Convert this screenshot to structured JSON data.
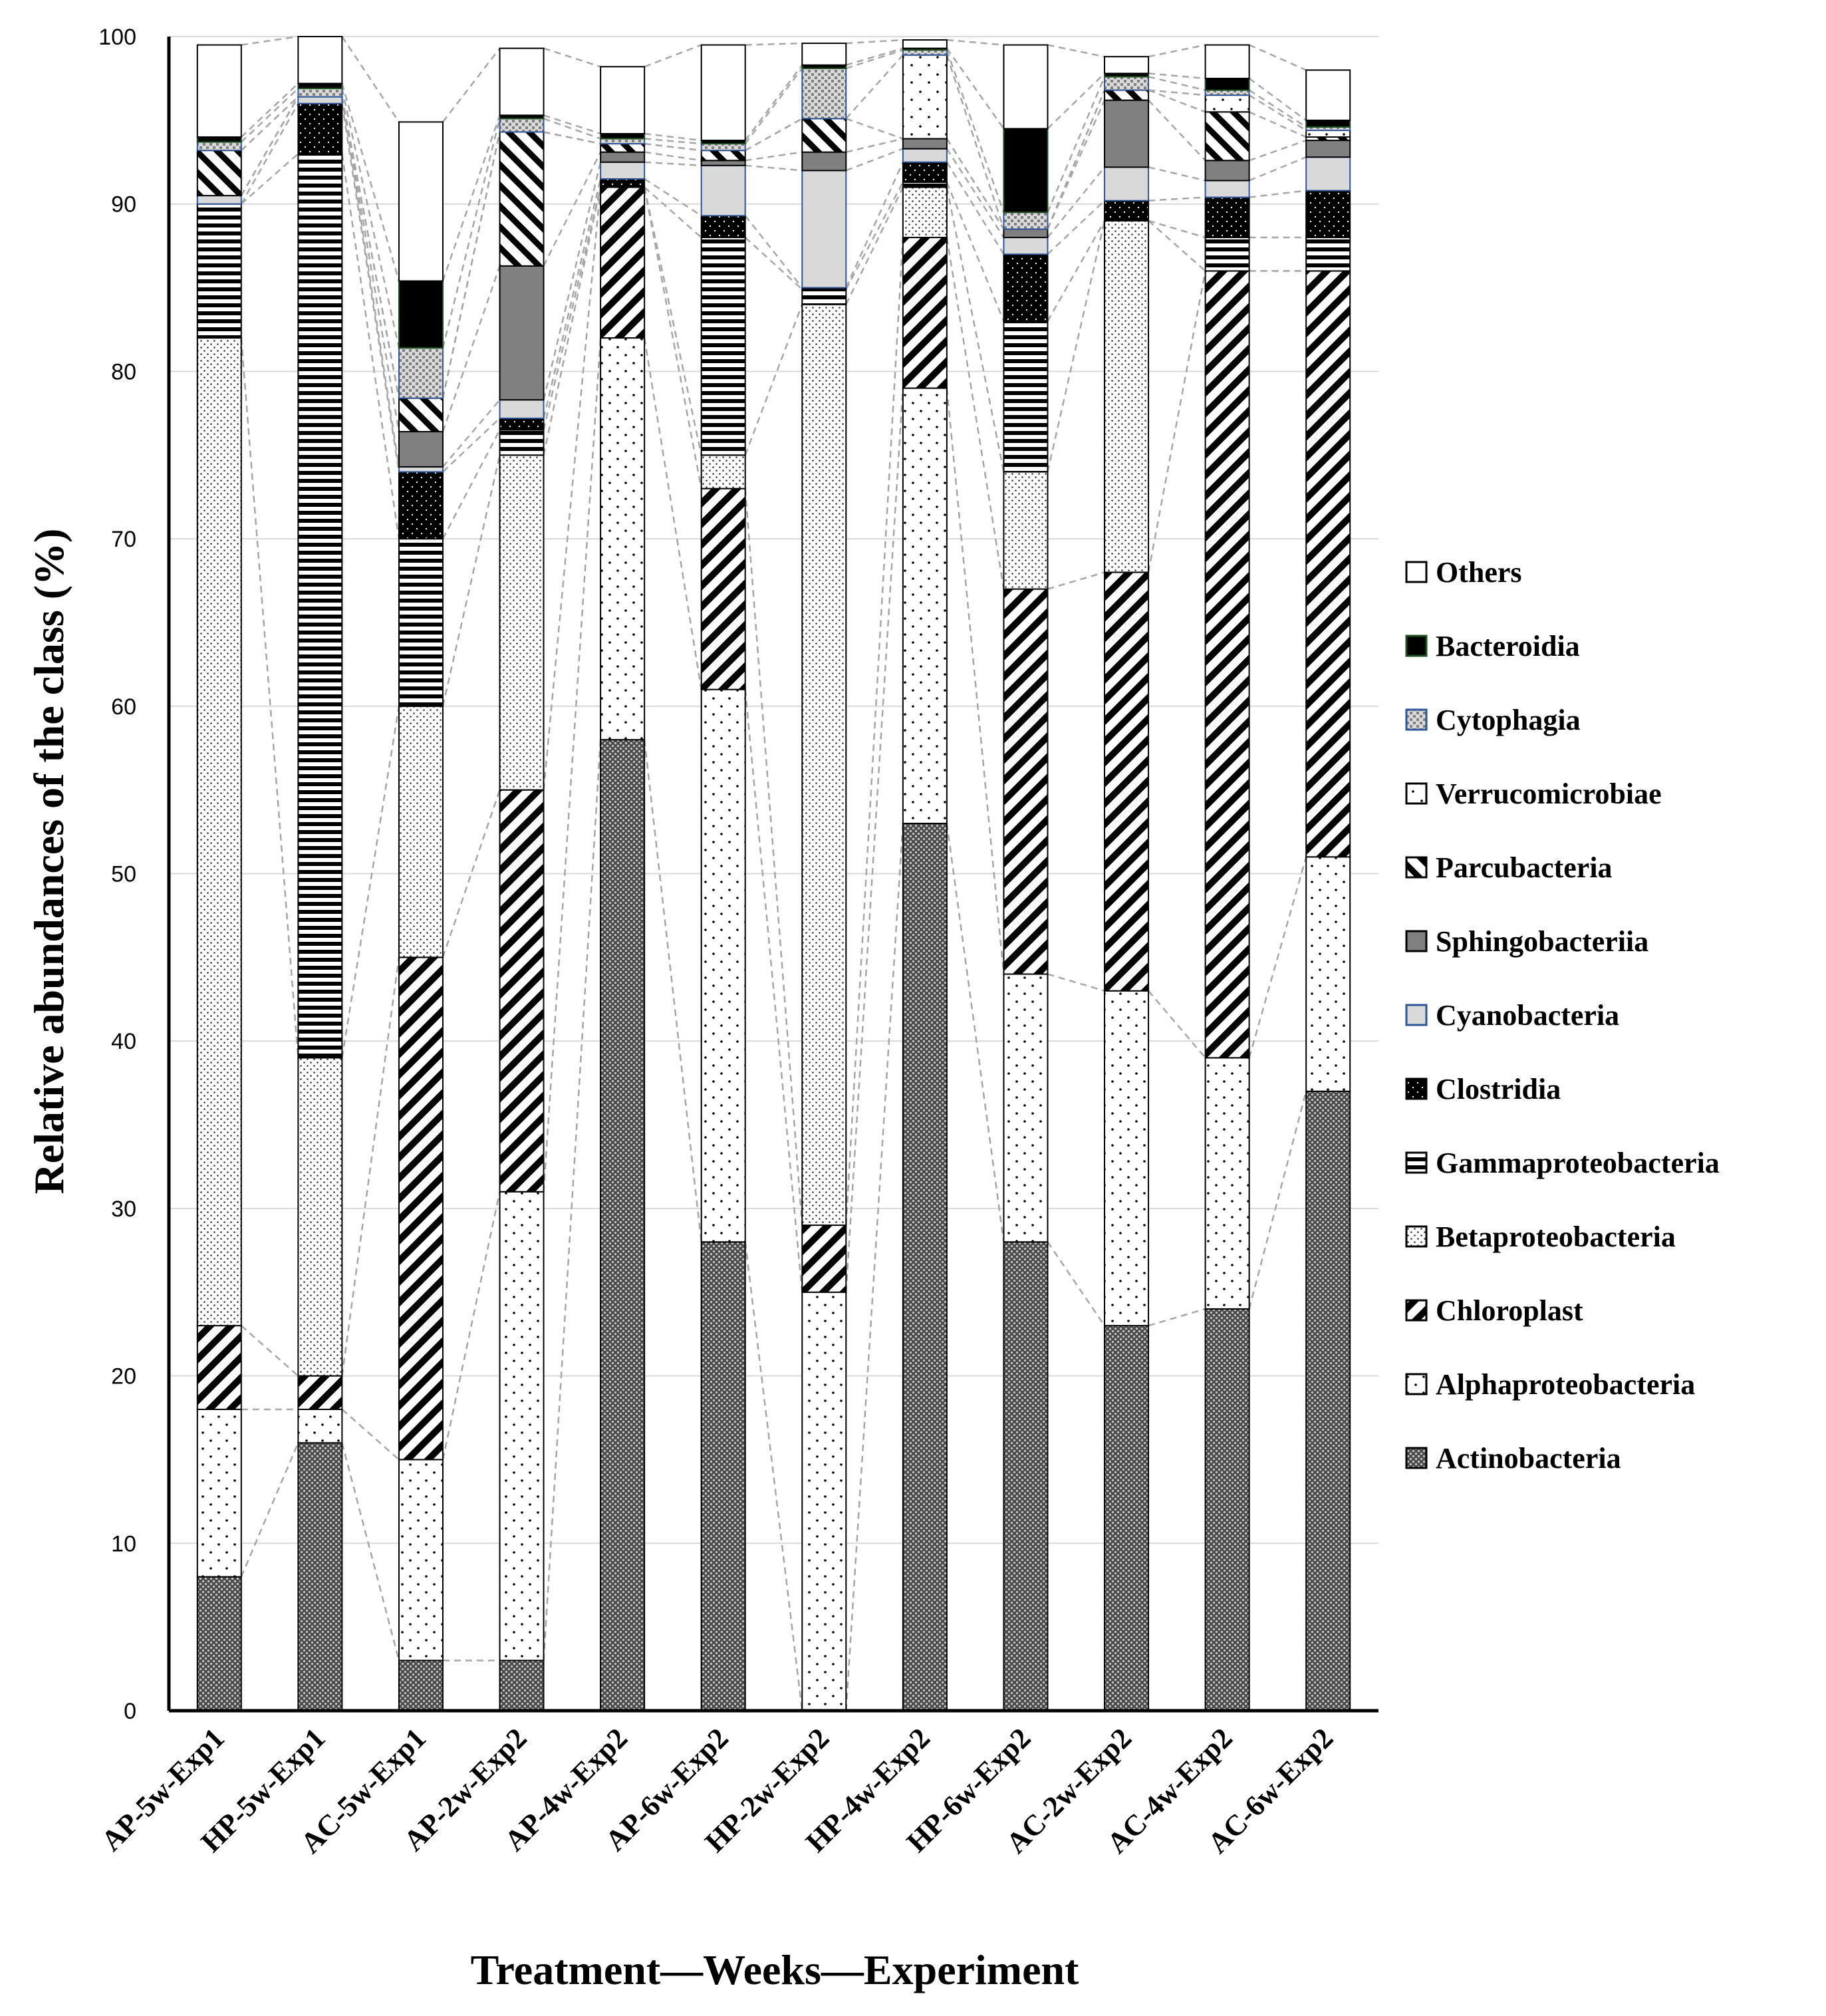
{
  "chart_data": {
    "type": "bar",
    "stacked": true,
    "title": "",
    "xlabel": "Treatment—Weeks—Experiment",
    "ylabel": "Relative abundances of the class (%)",
    "ylim": [
      0,
      100
    ],
    "yticks": [
      0,
      10,
      20,
      30,
      40,
      50,
      60,
      70,
      80,
      90,
      100
    ],
    "grid": true,
    "legend_position": "right",
    "categories": [
      "AP-5w-Exp1",
      "HP-5w-Exp1",
      "AC-5w-Exp1",
      "AP-2w-Exp2",
      "AP-4w-Exp2",
      "AP-6w-Exp2",
      "HP-2w-Exp2",
      "HP-4w-Exp2",
      "HP-6w-Exp2",
      "AC-2w-Exp2",
      "AC-4w-Exp2",
      "AC-6w-Exp2"
    ],
    "series": [
      {
        "name": "Actinobacteria",
        "values": [
          8,
          16,
          3,
          3,
          58,
          28,
          0,
          53,
          28,
          23,
          24,
          37
        ]
      },
      {
        "name": "Alphaproteobacteria",
        "values": [
          10,
          2,
          12,
          28,
          24,
          33,
          25,
          26,
          16,
          20,
          15,
          14
        ]
      },
      {
        "name": "Chloroplast",
        "values": [
          5,
          2,
          30,
          24,
          9,
          12,
          4,
          9,
          23,
          25,
          47,
          35
        ]
      },
      {
        "name": "Betaproteobacteria",
        "values": [
          59,
          19,
          15,
          20,
          0,
          2,
          55,
          3,
          7,
          21,
          0,
          0
        ]
      },
      {
        "name": "Gammaproteobacteria",
        "values": [
          8,
          54,
          10,
          1.5,
          0,
          13,
          0.9,
          0.3,
          9,
          0,
          2,
          2
        ]
      },
      {
        "name": "Clostridia",
        "values": [
          0,
          3,
          4,
          0.7,
          0.5,
          1.3,
          0.1,
          1.2,
          4,
          1.2,
          2.4,
          2.8
        ]
      },
      {
        "name": "Cyanobacteria",
        "values": [
          0.5,
          0.4,
          0.3,
          1.1,
          1,
          3,
          7,
          0.8,
          1,
          2,
          1,
          2
        ]
      },
      {
        "name": "Sphingobacteriia",
        "values": [
          0,
          0,
          2.1,
          8,
          0.6,
          0.3,
          1.1,
          0.6,
          0.5,
          4,
          1.2,
          1
        ]
      },
      {
        "name": "Parcubacteria",
        "values": [
          2.7,
          0,
          2,
          8,
          0.5,
          0.6,
          2,
          0,
          0,
          0.6,
          2.9,
          0.2
        ]
      },
      {
        "name": "Verrucomicrobiae",
        "values": [
          0,
          0,
          0,
          0,
          0,
          0,
          0,
          5,
          0,
          0,
          1,
          0.4
        ]
      },
      {
        "name": "Cytophagia",
        "values": [
          0.5,
          0.5,
          3,
          0.8,
          0.3,
          0.4,
          3,
          0.3,
          1,
          0.8,
          0.3,
          0.2
        ]
      },
      {
        "name": "Bacteroidia",
        "values": [
          0.3,
          0.3,
          4,
          0.2,
          0.3,
          0.2,
          0.2,
          0.1,
          5,
          0.2,
          0.7,
          0.4
        ]
      },
      {
        "name": "Others",
        "values": [
          5.5,
          3,
          9.5,
          4,
          4,
          5.7,
          1.3,
          0.5,
          5,
          1,
          2,
          3
        ]
      }
    ],
    "legend_order": [
      "Others",
      "Bacteroidia",
      "Cytophagia",
      "Verrucomicrobiae",
      "Parcubacteria",
      "Sphingobacteriia",
      "Cyanobacteria",
      "Clostridia",
      "Gammaproteobacteria",
      "Betaproteobacteria",
      "Chloroplast",
      "Alphaproteobacteria",
      "Actinobacteria"
    ],
    "legend_labels": [
      "Others",
      "Bacteroidia",
      "Cytophagia",
      "Verrucomicrobiae",
      "Parcubacteria",
      "Sphingobacteriia",
      "Cyanobacteria",
      "Clostridia",
      "Gammaproteobacteria",
      "Betaproteobacteria",
      "Chloroplast",
      "Alphaproteobacteria",
      "Actinobacteria"
    ]
  }
}
